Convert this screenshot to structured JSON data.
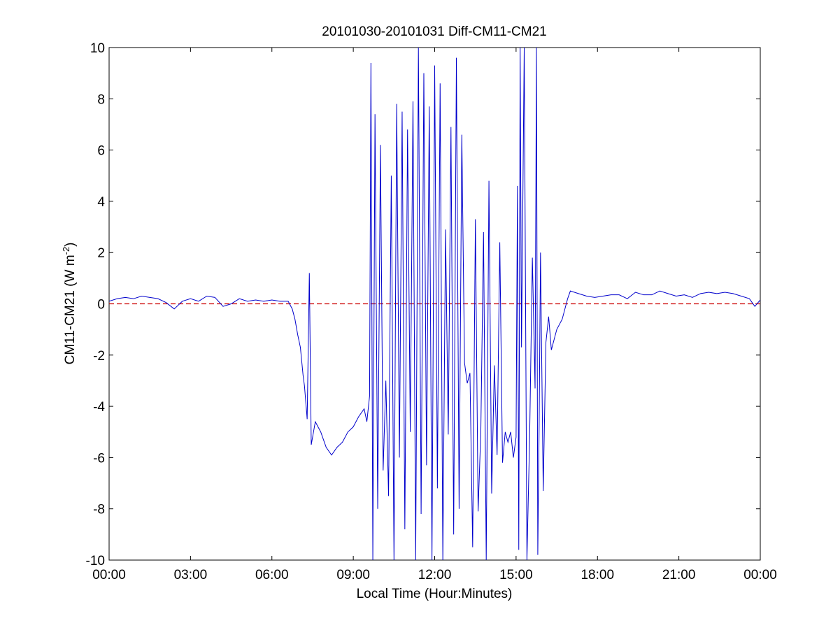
{
  "chart_data": {
    "type": "line",
    "title": "20101030-20101031 Diff-CM11-CM21",
    "xlabel": "Local Time (Hour:Minutes)",
    "ylabel": "CM11-CM21 (W m",
    "ylabel_sup": "-2",
    "ylabel_close": ")",
    "xlim": [
      0,
      24
    ],
    "ylim": [
      -10,
      10
    ],
    "x_ticks": [
      0,
      3,
      6,
      9,
      12,
      15,
      18,
      21,
      24
    ],
    "x_tick_labels": [
      "00:00",
      "03:00",
      "06:00",
      "09:00",
      "12:00",
      "15:00",
      "18:00",
      "21:00",
      "00:00"
    ],
    "y_ticks": [
      -10,
      -8,
      -6,
      -4,
      -2,
      0,
      2,
      4,
      6,
      8,
      10
    ],
    "y_tick_labels": [
      "-10",
      "-8",
      "-6",
      "-4",
      "-2",
      "0",
      "2",
      "4",
      "6",
      "8",
      "10"
    ],
    "grid": false,
    "reference_line": {
      "y": 0,
      "style": "dashed",
      "color": "#cc0000"
    },
    "series": [
      {
        "color": "#0000cc",
        "x": [
          0.0,
          0.3,
          0.6,
          0.9,
          1.2,
          1.5,
          1.8,
          2.1,
          2.4,
          2.7,
          3.0,
          3.3,
          3.6,
          3.9,
          4.2,
          4.5,
          4.8,
          5.1,
          5.4,
          5.7,
          6.0,
          6.3,
          6.6,
          6.75,
          6.85,
          6.95,
          7.05,
          7.15,
          7.2,
          7.3,
          7.38,
          7.45,
          7.6,
          7.8,
          8.0,
          8.2,
          8.4,
          8.6,
          8.8,
          9.0,
          9.2,
          9.4,
          9.5,
          9.6,
          9.65,
          9.72,
          9.8,
          9.9,
          10.0,
          10.1,
          10.2,
          10.3,
          10.4,
          10.5,
          10.6,
          10.7,
          10.8,
          10.9,
          11.0,
          11.1,
          11.2,
          11.3,
          11.4,
          11.5,
          11.6,
          11.7,
          11.8,
          11.9,
          12.0,
          12.1,
          12.2,
          12.3,
          12.4,
          12.5,
          12.6,
          12.7,
          12.8,
          12.9,
          13.0,
          13.1,
          13.2,
          13.3,
          13.4,
          13.5,
          13.6,
          13.7,
          13.8,
          13.9,
          14.0,
          14.1,
          14.2,
          14.3,
          14.4,
          14.5,
          14.6,
          14.7,
          14.8,
          14.9,
          15.0,
          15.05,
          15.1,
          15.15,
          15.2,
          15.3,
          15.4,
          15.5,
          15.6,
          15.7,
          15.75,
          15.8,
          15.85,
          15.9,
          16.0,
          16.1,
          16.2,
          16.3,
          16.5,
          16.7,
          16.9,
          17.0,
          17.3,
          17.6,
          17.9,
          18.2,
          18.5,
          18.8,
          19.1,
          19.4,
          19.7,
          20.0,
          20.3,
          20.6,
          20.9,
          21.2,
          21.5,
          21.8,
          22.1,
          22.4,
          22.7,
          23.0,
          23.3,
          23.6,
          23.8,
          24.0
        ],
        "y": [
          0.1,
          0.2,
          0.25,
          0.2,
          0.3,
          0.25,
          0.2,
          0.05,
          -0.2,
          0.1,
          0.2,
          0.1,
          0.3,
          0.25,
          -0.1,
          0.0,
          0.2,
          0.1,
          0.15,
          0.1,
          0.15,
          0.1,
          0.1,
          -0.2,
          -0.6,
          -1.2,
          -1.7,
          -2.8,
          -3.2,
          -4.5,
          1.2,
          -5.5,
          -4.6,
          -5.0,
          -5.6,
          -5.9,
          -5.6,
          -5.4,
          -5.0,
          -4.8,
          -4.4,
          -4.1,
          -4.6,
          -3.6,
          9.4,
          -10.0,
          7.4,
          -8.0,
          6.2,
          -6.5,
          -3.0,
          -7.5,
          5.0,
          -10.0,
          7.8,
          -6.0,
          7.5,
          -8.8,
          6.8,
          -5.0,
          7.9,
          -10.0,
          10.0,
          -8.2,
          9.0,
          -6.3,
          7.7,
          -10.0,
          9.3,
          -7.2,
          8.6,
          -10.0,
          2.9,
          -5.1,
          6.9,
          -9.0,
          9.6,
          -8.0,
          6.6,
          -2.3,
          -3.1,
          -2.7,
          -9.5,
          3.3,
          -8.1,
          -5.0,
          2.8,
          -10.0,
          4.8,
          -7.4,
          -2.4,
          -5.9,
          2.4,
          -6.2,
          -5.0,
          -5.4,
          -5.0,
          -6.0,
          -5.2,
          4.6,
          -9.6,
          10.0,
          -1.7,
          10.0,
          -10.0,
          -5.2,
          1.8,
          -3.3,
          10.0,
          -9.8,
          -4.7,
          2.0,
          -7.3,
          -1.5,
          -0.5,
          -1.8,
          -1.0,
          -0.6,
          0.2,
          0.5,
          0.4,
          0.3,
          0.25,
          0.3,
          0.35,
          0.35,
          0.2,
          0.45,
          0.35,
          0.35,
          0.5,
          0.4,
          0.3,
          0.35,
          0.25,
          0.4,
          0.45,
          0.4,
          0.45,
          0.4,
          0.3,
          0.2,
          -0.1,
          0.15
        ]
      }
    ]
  }
}
